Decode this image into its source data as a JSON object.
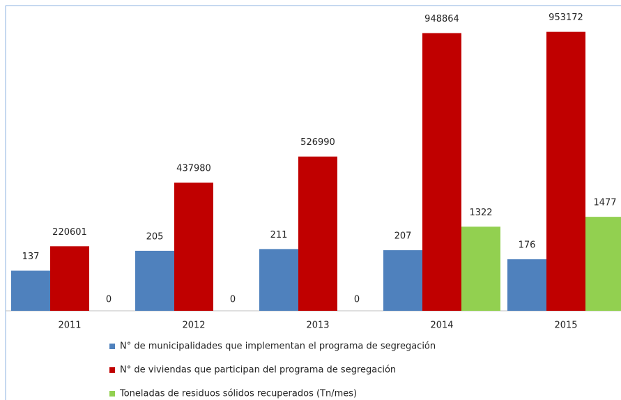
{
  "chart_data": {
    "type": "bar",
    "categories": [
      "2011",
      "2012",
      "2013",
      "2014",
      "2015"
    ],
    "series": [
      {
        "name": "N° de municipalidades que implementan el programa de segregación",
        "color": "#4f81bd",
        "values": [
          137,
          205,
          211,
          207,
          176
        ],
        "ylim": [
          0,
          1000
        ]
      },
      {
        "name": "N° de viviendas que participan del programa de segregación",
        "color": "#c00000",
        "values": [
          220601,
          437980,
          526990,
          948864,
          953172
        ],
        "ylim": [
          0,
          1000000
        ]
      },
      {
        "name": "Toneladas de residuos sólidos recuperados (Tn/mes)",
        "color": "#92d050",
        "values": [
          0,
          0,
          0,
          1322,
          1477
        ],
        "ylim": [
          0,
          4600
        ]
      }
    ]
  }
}
